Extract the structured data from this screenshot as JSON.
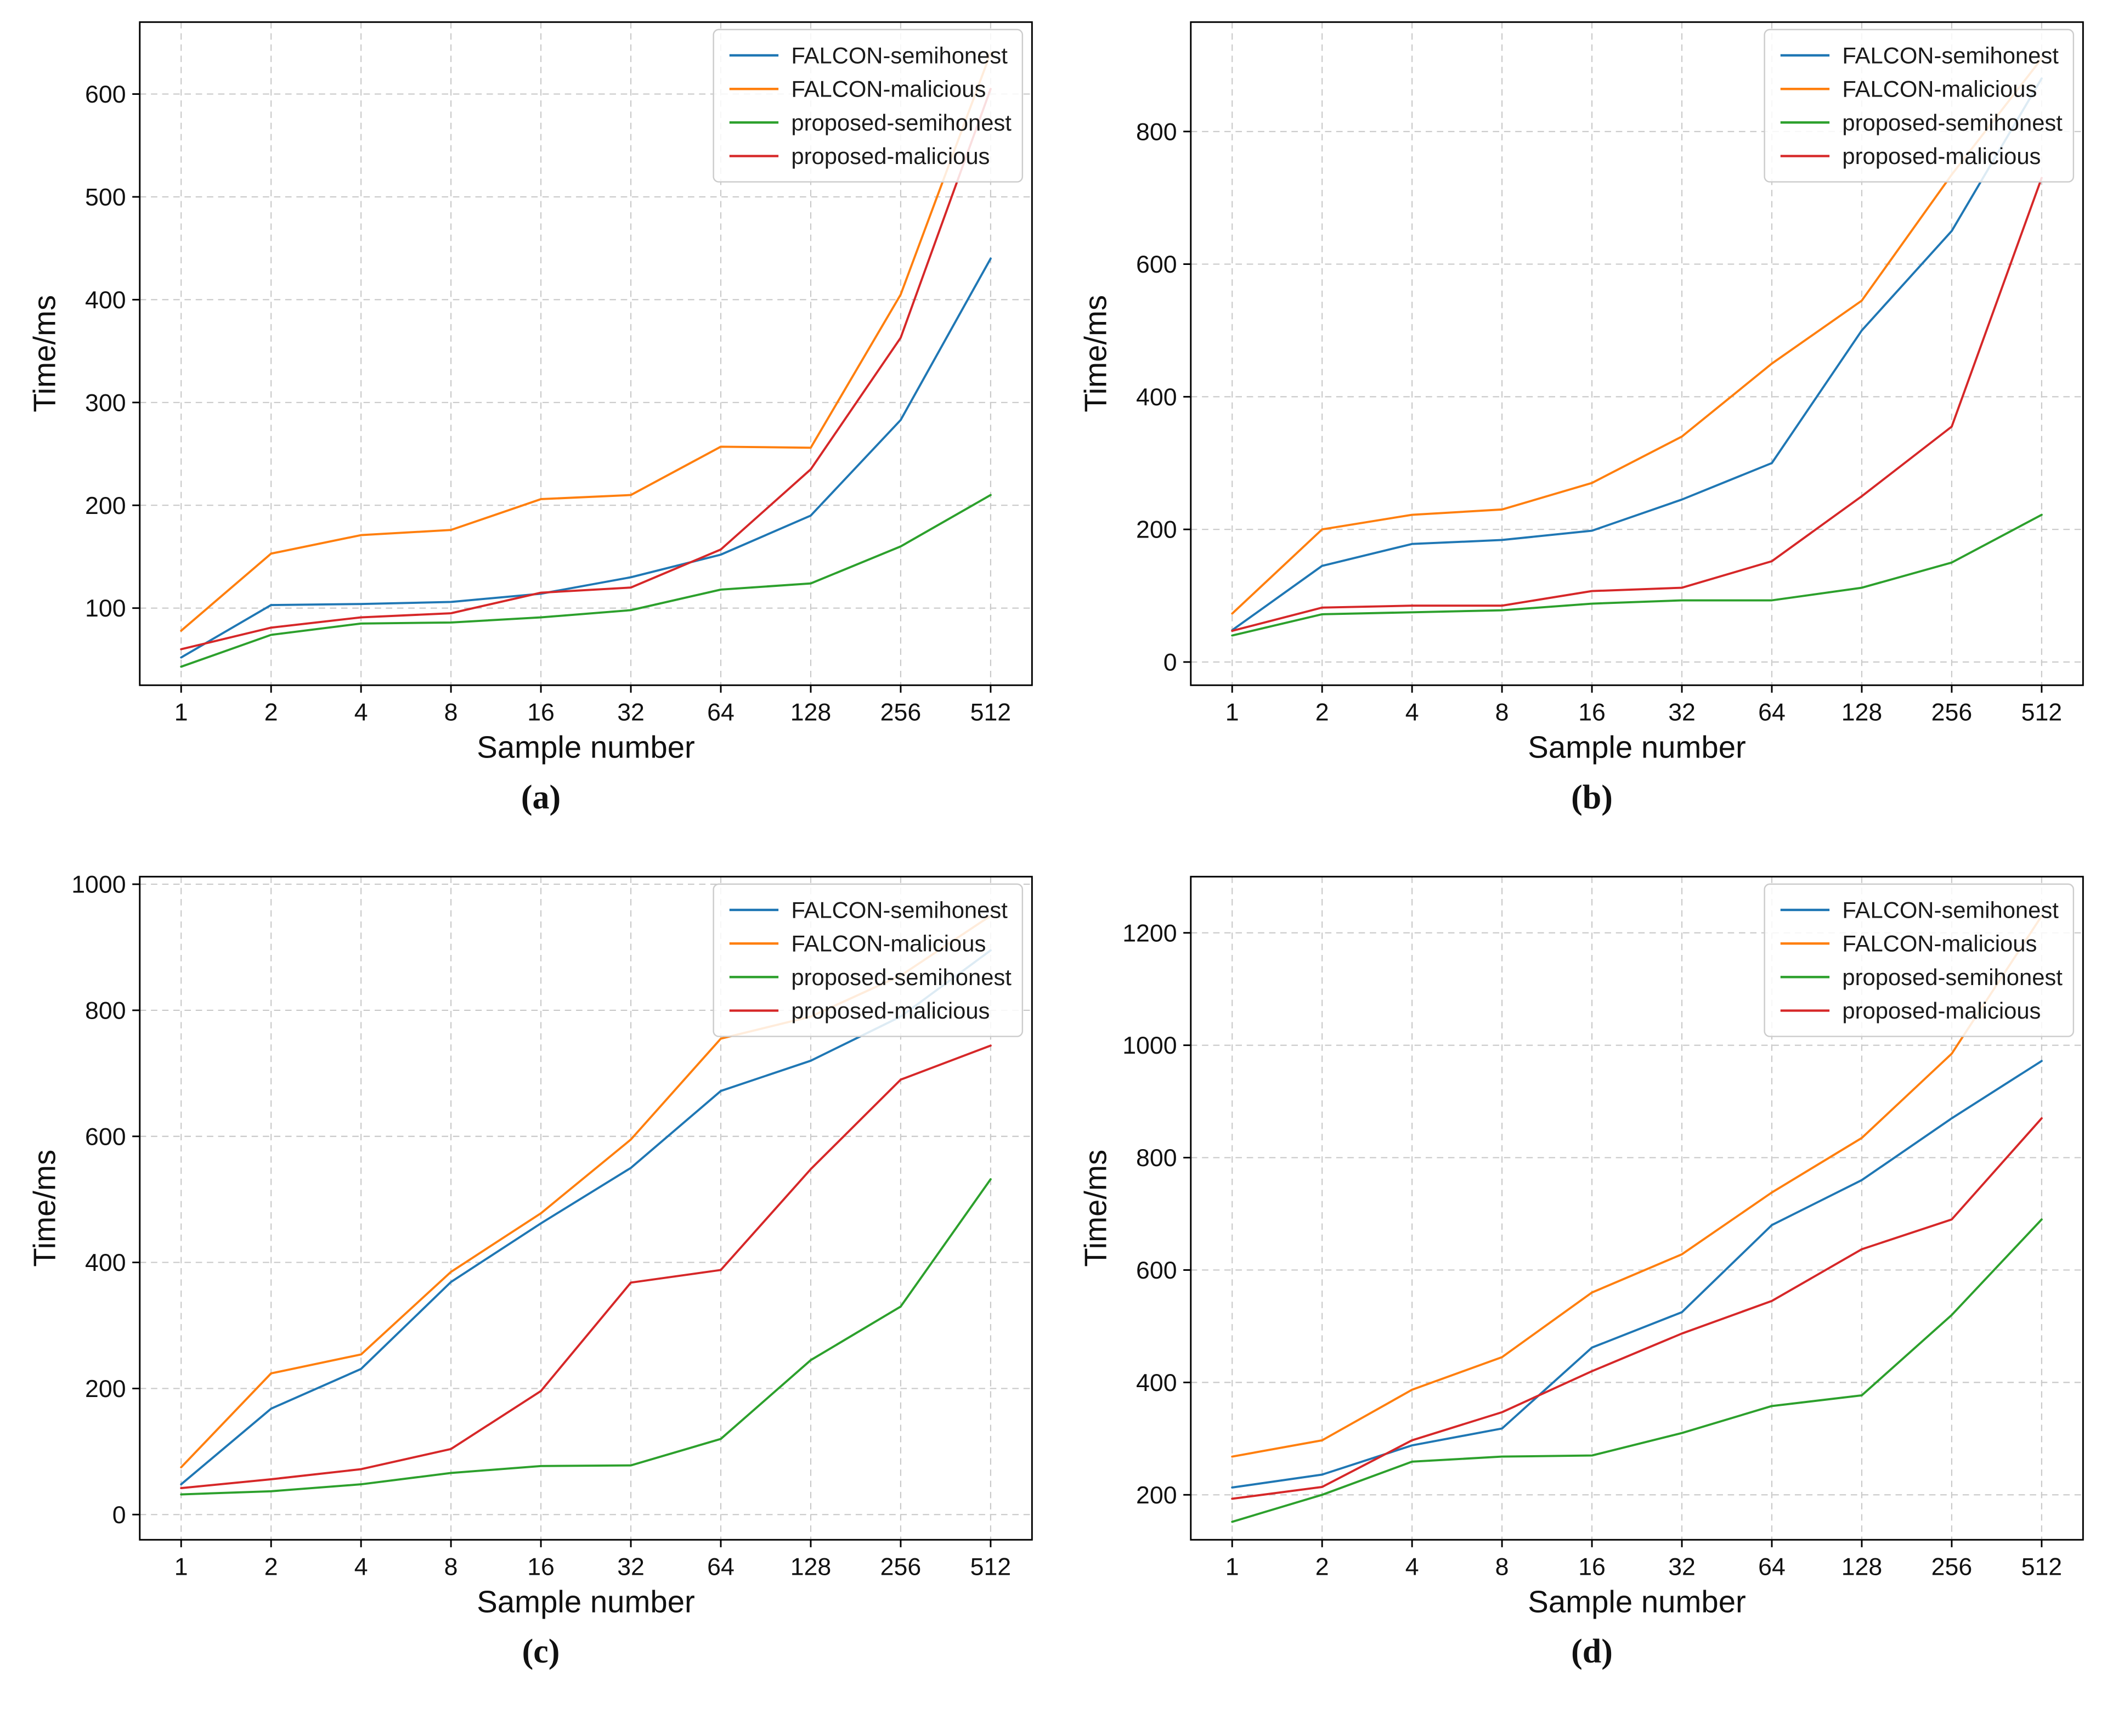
{
  "page": {
    "background": "#ffffff"
  },
  "styles": {
    "grid_color": "#c9c9c9",
    "spine_color": "#000000",
    "legend_border": "#cccccc",
    "legend_background": "rgba(255,255,255,0.85)"
  },
  "chart_data": [
    {
      "id": "a",
      "caption": "(a)",
      "type": "line",
      "xlabel": "Sample number",
      "ylabel": "Time/ms",
      "x_scale": "log2-categorical",
      "grid": true,
      "legend_position": "upper-right",
      "categories": [
        1,
        2,
        4,
        8,
        16,
        32,
        64,
        128,
        256,
        512
      ],
      "ylim": [
        25,
        670
      ],
      "yticks": [
        100,
        200,
        300,
        400,
        500,
        600
      ],
      "series": [
        {
          "name": "FALCON-semihonest",
          "color": "#1f77b4",
          "values": [
            52,
            103,
            104,
            106,
            114,
            130,
            152,
            190,
            283,
            440
          ]
        },
        {
          "name": "FALCON-malicious",
          "color": "#ff7f0e",
          "values": [
            78,
            153,
            171,
            176,
            206,
            210,
            257,
            256,
            405,
            640
          ]
        },
        {
          "name": "proposed-semihonest",
          "color": "#2ca02c",
          "values": [
            43,
            74,
            85,
            86,
            91,
            98,
            118,
            124,
            160,
            210
          ]
        },
        {
          "name": "proposed-malicious",
          "color": "#d62728",
          "values": [
            60,
            81,
            91,
            95,
            115,
            120,
            157,
            235,
            363,
            605
          ]
        }
      ]
    },
    {
      "id": "b",
      "caption": "(b)",
      "type": "line",
      "xlabel": "Sample number",
      "ylabel": "Time/ms",
      "x_scale": "log2-categorical",
      "grid": true,
      "legend_position": "upper-right",
      "categories": [
        1,
        2,
        4,
        8,
        16,
        32,
        64,
        128,
        256,
        512
      ],
      "ylim": [
        -35,
        965
      ],
      "yticks": [
        0,
        200,
        400,
        600,
        800
      ],
      "series": [
        {
          "name": "FALCON-semihonest",
          "color": "#1f77b4",
          "values": [
            48,
            145,
            178,
            184,
            198,
            245,
            300,
            500,
            650,
            880
          ]
        },
        {
          "name": "FALCON-malicious",
          "color": "#ff7f0e",
          "values": [
            73,
            200,
            222,
            230,
            270,
            340,
            450,
            545,
            735,
            910
          ]
        },
        {
          "name": "proposed-semihonest",
          "color": "#2ca02c",
          "values": [
            40,
            72,
            75,
            78,
            88,
            93,
            93,
            112,
            150,
            222
          ]
        },
        {
          "name": "proposed-malicious",
          "color": "#d62728",
          "values": [
            47,
            82,
            85,
            85,
            107,
            112,
            152,
            250,
            355,
            730
          ]
        }
      ]
    },
    {
      "id": "c",
      "caption": "(c)",
      "type": "line",
      "xlabel": "Sample number",
      "ylabel": "Time/ms",
      "x_scale": "log2-categorical",
      "grid": true,
      "legend_position": "upper-right",
      "categories": [
        1,
        2,
        4,
        8,
        16,
        32,
        64,
        128,
        256,
        512
      ],
      "ylim": [
        -40,
        1012
      ],
      "yticks": [
        0,
        200,
        400,
        600,
        800,
        1000
      ],
      "series": [
        {
          "name": "FALCON-semihonest",
          "color": "#1f77b4",
          "values": [
            48,
            168,
            231,
            369,
            462,
            550,
            672,
            720,
            790,
            895
          ]
        },
        {
          "name": "FALCON-malicious",
          "color": "#ff7f0e",
          "values": [
            75,
            224,
            254,
            385,
            478,
            595,
            755,
            790,
            855,
            950
          ]
        },
        {
          "name": "proposed-semihonest",
          "color": "#2ca02c",
          "values": [
            32,
            37,
            48,
            66,
            77,
            78,
            120,
            245,
            330,
            532
          ]
        },
        {
          "name": "proposed-malicious",
          "color": "#d62728",
          "values": [
            42,
            56,
            72,
            104,
            196,
            368,
            388,
            548,
            690,
            744
          ]
        }
      ]
    },
    {
      "id": "d",
      "caption": "(d)",
      "type": "line",
      "xlabel": "Sample number",
      "ylabel": "Time/ms",
      "x_scale": "log2-categorical",
      "grid": true,
      "legend_position": "upper-right",
      "categories": [
        1,
        2,
        4,
        8,
        16,
        32,
        64,
        128,
        256,
        512
      ],
      "ylim": [
        120,
        1300
      ],
      "yticks": [
        200,
        400,
        600,
        800,
        1000,
        1200
      ],
      "series": [
        {
          "name": "FALCON-semihonest",
          "color": "#1f77b4",
          "values": [
            213,
            236,
            288,
            318,
            462,
            525,
            680,
            760,
            870,
            972
          ]
        },
        {
          "name": "FALCON-malicious",
          "color": "#ff7f0e",
          "values": [
            268,
            297,
            387,
            445,
            560,
            628,
            738,
            835,
            985,
            1230
          ]
        },
        {
          "name": "proposed-semihonest",
          "color": "#2ca02c",
          "values": [
            152,
            200,
            259,
            268,
            270,
            310,
            358,
            377,
            520,
            690
          ]
        },
        {
          "name": "proposed-malicious",
          "color": "#d62728",
          "values": [
            193,
            214,
            297,
            347,
            420,
            487,
            545,
            637,
            690,
            870
          ]
        }
      ]
    }
  ]
}
